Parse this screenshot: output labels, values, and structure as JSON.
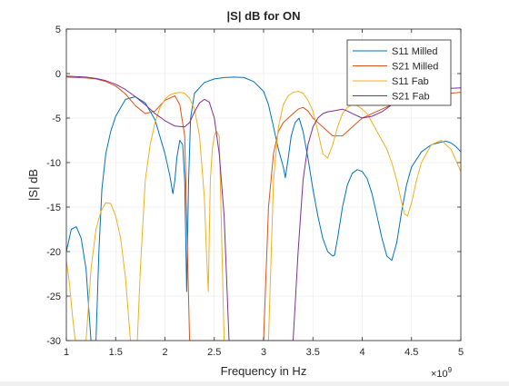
{
  "chart_data": {
    "type": "line",
    "title": "|S| dB for ON",
    "xlabel": "Frequency in Hz",
    "ylabel": "|S| dB",
    "x_exponent_label": "×10",
    "x_exponent_power": "9",
    "xlim": [
      1.0,
      5.0
    ],
    "ylim": [
      -30,
      5
    ],
    "x_scale": 1000000000,
    "xticks": [
      1,
      1.5,
      2,
      2.5,
      3,
      3.5,
      4,
      4.5,
      5
    ],
    "xtick_labels": [
      "1",
      "1.5",
      "2",
      "2.5",
      "3",
      "3.5",
      "4",
      "4.5",
      "5"
    ],
    "yticks": [
      5,
      0,
      -5,
      -10,
      -15,
      -20,
      -25,
      -30
    ],
    "ytick_labels": [
      "5",
      "0",
      "-5",
      "-10",
      "-15",
      "-20",
      "-25",
      "-30"
    ],
    "grid": true,
    "legend_position": "top-right",
    "series": [
      {
        "name": "S11 Milled",
        "color": "#0072bd",
        "x": [
          1.0,
          1.05,
          1.1,
          1.15,
          1.2,
          1.25,
          1.3,
          1.33,
          1.36,
          1.4,
          1.45,
          1.5,
          1.6,
          1.7,
          1.8,
          1.9,
          2.0,
          2.05,
          2.08,
          2.1,
          2.12,
          2.15,
          2.18,
          2.2,
          2.22,
          2.24,
          2.26,
          2.3,
          2.4,
          2.5,
          2.6,
          2.7,
          2.8,
          2.9,
          3.0,
          3.05,
          3.1,
          3.15,
          3.2,
          3.22,
          3.25,
          3.28,
          3.32,
          3.36,
          3.4,
          3.45,
          3.5,
          3.55,
          3.6,
          3.65,
          3.7,
          3.72,
          3.75,
          3.8,
          3.85,
          3.9,
          3.95,
          4.0,
          4.05,
          4.1,
          4.15,
          4.2,
          4.25,
          4.3,
          4.35,
          4.4,
          4.45,
          4.5,
          4.6,
          4.7,
          4.8,
          4.85,
          4.9,
          4.95,
          5.0
        ],
        "y": [
          -20.0,
          -17.5,
          -17.2,
          -18.5,
          -22.0,
          -30.0,
          -30.0,
          -20.0,
          -13.0,
          -9.0,
          -6.5,
          -4.8,
          -2.9,
          -2.6,
          -3.3,
          -5.2,
          -9.0,
          -11.5,
          -13.5,
          -12.0,
          -9.5,
          -7.5,
          -8.0,
          -12.0,
          -24.5,
          -12.0,
          -5.0,
          -2.2,
          -1.0,
          -0.6,
          -0.45,
          -0.4,
          -0.45,
          -0.9,
          -2.0,
          -3.5,
          -6.0,
          -8.5,
          -10.5,
          -11.7,
          -9.5,
          -7.0,
          -5.5,
          -5.0,
          -6.5,
          -9.5,
          -13.0,
          -16.0,
          -18.5,
          -20.0,
          -20.5,
          -20.4,
          -18.5,
          -15.0,
          -12.5,
          -11.2,
          -10.8,
          -11.0,
          -11.8,
          -13.5,
          -16.0,
          -18.5,
          -20.5,
          -21.0,
          -19.0,
          -15.5,
          -12.5,
          -10.5,
          -8.8,
          -8.0,
          -7.7,
          -7.6,
          -7.8,
          -8.2,
          -8.8
        ]
      },
      {
        "name": "S21 Milled",
        "color": "#d95319",
        "x": [
          1.0,
          1.1,
          1.2,
          1.3,
          1.4,
          1.5,
          1.6,
          1.7,
          1.8,
          1.9,
          2.0,
          2.1,
          2.15,
          2.2,
          2.25,
          2.3,
          2.4,
          2.5,
          2.6,
          2.7,
          2.8,
          2.9,
          3.0,
          3.05,
          3.1,
          3.15,
          3.2,
          3.25,
          3.3,
          3.35,
          3.4,
          3.45,
          3.5,
          3.6,
          3.7,
          3.8,
          3.9,
          4.0,
          4.1,
          4.2,
          4.3,
          4.4,
          4.5,
          4.6,
          4.7,
          4.8,
          4.9,
          5.0
        ],
        "y": [
          -0.4,
          -0.45,
          -0.5,
          -0.6,
          -0.9,
          -1.4,
          -2.3,
          -3.6,
          -4.5,
          -4.2,
          -3.0,
          -2.5,
          -3.5,
          -7.0,
          -30.0,
          -30.0,
          -30.0,
          -30.0,
          -30.0,
          -30.0,
          -30.0,
          -30.0,
          -30.0,
          -15.0,
          -9.0,
          -6.5,
          -5.5,
          -5.0,
          -4.5,
          -4.0,
          -3.8,
          -4.2,
          -5.0,
          -6.0,
          -7.0,
          -7.0,
          -6.0,
          -5.0,
          -4.5,
          -4.0,
          -3.5,
          -3.0,
          -2.7,
          -2.5,
          -2.3,
          -2.2,
          -2.2,
          -2.1
        ]
      },
      {
        "name": "S11 Fab",
        "color": "#edb120",
        "x": [
          1.0,
          1.03,
          1.06,
          1.09,
          1.12,
          1.15,
          1.2,
          1.25,
          1.3,
          1.35,
          1.4,
          1.45,
          1.5,
          1.55,
          1.6,
          1.65,
          1.68,
          1.7,
          1.72,
          1.75,
          1.8,
          1.85,
          1.9,
          1.95,
          2.0,
          2.05,
          2.1,
          2.15,
          2.2,
          2.25,
          2.3,
          2.35,
          2.4,
          2.42,
          2.44,
          2.45,
          2.46,
          2.48,
          2.5,
          2.52,
          2.55,
          2.6,
          2.65,
          2.7,
          2.8,
          2.9,
          3.0,
          3.05,
          3.1,
          3.15,
          3.2,
          3.25,
          3.3,
          3.35,
          3.4,
          3.45,
          3.5,
          3.55,
          3.6,
          3.65,
          3.7,
          3.75,
          3.8,
          3.85,
          3.9,
          3.95,
          4.0,
          4.05,
          4.1,
          4.15,
          4.2,
          4.25,
          4.3,
          4.35,
          4.4,
          4.43,
          4.46,
          4.5,
          4.55,
          4.6,
          4.7,
          4.8,
          4.9,
          5.0
        ],
        "y": [
          -21.0,
          -23.5,
          -27.0,
          -30.0,
          -30.0,
          -30.0,
          -30.0,
          -22.0,
          -17.5,
          -15.5,
          -14.5,
          -14.6,
          -16.0,
          -18.5,
          -23.0,
          -30.0,
          -30.0,
          -30.0,
          -30.0,
          -22.0,
          -12.0,
          -8.0,
          -5.5,
          -3.8,
          -2.9,
          -2.4,
          -2.2,
          -2.1,
          -2.2,
          -2.8,
          -4.0,
          -7.0,
          -14.0,
          -20.0,
          -24.5,
          -18.0,
          -12.0,
          -8.5,
          -7.0,
          -6.5,
          -7.0,
          -30.0,
          -30.0,
          -30.0,
          -30.0,
          -30.0,
          -30.0,
          -30.0,
          -12.0,
          -6.0,
          -3.5,
          -2.5,
          -2.1,
          -2.0,
          -2.2,
          -3.0,
          -4.2,
          -6.5,
          -9.0,
          -9.5,
          -8.0,
          -6.0,
          -4.5,
          -3.8,
          -3.5,
          -3.6,
          -4.0,
          -4.5,
          -5.5,
          -6.5,
          -7.5,
          -8.5,
          -10.0,
          -12.0,
          -14.5,
          -15.8,
          -16.0,
          -14.5,
          -12.0,
          -10.0,
          -8.0,
          -7.5,
          -8.5,
          -11.0
        ]
      },
      {
        "name": "S21 Fab",
        "color": "#7e2f8e",
        "x": [
          1.0,
          1.1,
          1.2,
          1.3,
          1.4,
          1.5,
          1.6,
          1.7,
          1.8,
          1.9,
          2.0,
          2.1,
          2.2,
          2.25,
          2.3,
          2.35,
          2.4,
          2.45,
          2.5,
          2.55,
          2.6,
          2.65,
          2.7,
          2.8,
          2.9,
          3.0,
          3.1,
          3.2,
          3.25,
          3.3,
          3.35,
          3.4,
          3.45,
          3.5,
          3.55,
          3.6,
          3.65,
          3.7,
          3.75,
          3.8,
          3.85,
          3.9,
          4.0,
          4.1,
          4.2,
          4.3,
          4.4,
          4.5,
          4.6,
          4.7,
          4.8,
          4.9,
          5.0
        ],
        "y": [
          -0.3,
          -0.35,
          -0.4,
          -0.55,
          -0.8,
          -1.2,
          -1.8,
          -2.6,
          -3.5,
          -4.5,
          -5.3,
          -5.9,
          -6.0,
          -5.5,
          -4.3,
          -3.3,
          -2.9,
          -3.2,
          -5.0,
          -9.0,
          -16.0,
          -30.0,
          -30.0,
          -30.0,
          -30.0,
          -30.0,
          -30.0,
          -30.0,
          -30.0,
          -30.0,
          -20.0,
          -12.0,
          -8.0,
          -6.0,
          -5.0,
          -4.5,
          -4.3,
          -4.2,
          -4.1,
          -4.0,
          -4.2,
          -4.5,
          -5.0,
          -4.8,
          -4.3,
          -3.5,
          -2.8,
          -2.3,
          -2.0,
          -1.8,
          -1.7,
          -1.65,
          -1.6
        ]
      }
    ]
  }
}
